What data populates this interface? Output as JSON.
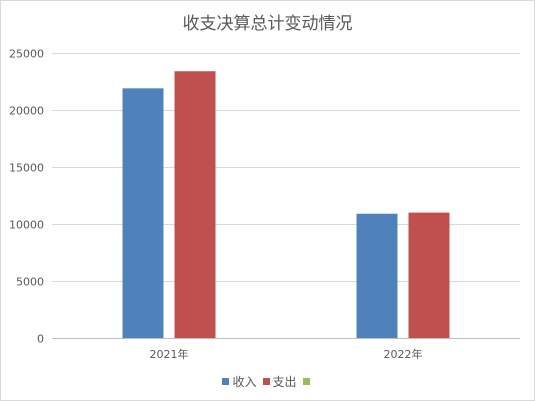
{
  "chart_data": {
    "type": "bar",
    "title": "收支决算总计变动情况",
    "categories": [
      "2021年",
      "2022年"
    ],
    "series": [
      {
        "name": "收入",
        "values": [
          21900,
          10900
        ],
        "color": "#4f81bd"
      },
      {
        "name": "支出",
        "values": [
          23400,
          11000
        ],
        "color": "#c0504d"
      },
      {
        "name": "",
        "values": [
          null,
          null
        ],
        "color": "#9bbb59"
      }
    ],
    "ylim": [
      0,
      25000
    ],
    "yticks": [
      "0",
      "5000",
      "10000",
      "15000",
      "20000",
      "25000"
    ],
    "grid": true,
    "legend_position": "bottom"
  }
}
